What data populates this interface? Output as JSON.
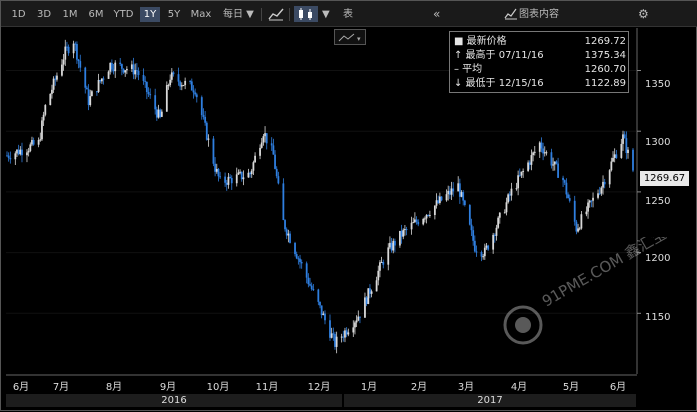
{
  "toolbar": {
    "ranges": [
      "1D",
      "3D",
      "1M",
      "6M",
      "YTD",
      "1Y",
      "5Y",
      "Max"
    ],
    "active_range": "1Y",
    "frequency": "每日 ▼",
    "table_label": "表",
    "chart_content_label": "图表内容",
    "collapse_icon": "double-chevron-left",
    "settings_icon": "gear"
  },
  "legend": {
    "rows": [
      {
        "label": "■ 最新价格",
        "value": "1269.72"
      },
      {
        "label": "↑ 最高于 07/11/16",
        "value": "1375.34"
      },
      {
        "label": "– 平均",
        "value": "1260.70"
      },
      {
        "label": "↓ 最低于 12/15/16",
        "value": "1122.89"
      }
    ]
  },
  "price_tag": "1269.67",
  "colors": {
    "up": "#d9d9d9",
    "down": "#2f7fe0",
    "background": "#000000"
  },
  "watermark_text": "91PME.COM 鑫汇宝贵金属",
  "chart_data": {
    "type": "candlestick",
    "y_ticks": [
      1150,
      1200,
      1250,
      1300,
      1350
    ],
    "ylim": [
      1100,
      1385
    ],
    "x_tick_labels": [
      "6月",
      "7月",
      "8月",
      "9月",
      "10月",
      "11月",
      "12月",
      "1月",
      "2月",
      "3月",
      "4月",
      "5月",
      "6月"
    ],
    "year_labels": [
      "2016",
      "2017"
    ],
    "close_path": [
      [
        "2016-06-01",
        1280
      ],
      [
        "2016-06-20",
        1290
      ],
      [
        "2016-06-24",
        1320
      ],
      [
        "2016-07-06",
        1365
      ],
      [
        "2016-07-11",
        1375
      ],
      [
        "2016-07-20",
        1325
      ],
      [
        "2016-08-02",
        1355
      ],
      [
        "2016-08-18",
        1350
      ],
      [
        "2016-09-01",
        1310
      ],
      [
        "2016-09-07",
        1345
      ],
      [
        "2016-09-22",
        1335
      ],
      [
        "2016-10-04",
        1270
      ],
      [
        "2016-10-07",
        1258
      ],
      [
        "2016-10-25",
        1265
      ],
      [
        "2016-11-02",
        1300
      ],
      [
        "2016-11-08",
        1280
      ],
      [
        "2016-11-14",
        1225
      ],
      [
        "2016-12-01",
        1170
      ],
      [
        "2016-12-15",
        1125
      ],
      [
        "2016-12-30",
        1150
      ],
      [
        "2017-01-15",
        1200
      ],
      [
        "2017-01-24",
        1215
      ],
      [
        "2017-02-10",
        1235
      ],
      [
        "2017-02-27",
        1255
      ],
      [
        "2017-03-09",
        1205
      ],
      [
        "2017-03-15",
        1200
      ],
      [
        "2017-03-31",
        1250
      ],
      [
        "2017-04-17",
        1290
      ],
      [
        "2017-05-01",
        1260
      ],
      [
        "2017-05-09",
        1220
      ],
      [
        "2017-05-24",
        1255
      ],
      [
        "2017-06-06",
        1295
      ],
      [
        "2017-06-12",
        1268
      ]
    ]
  }
}
